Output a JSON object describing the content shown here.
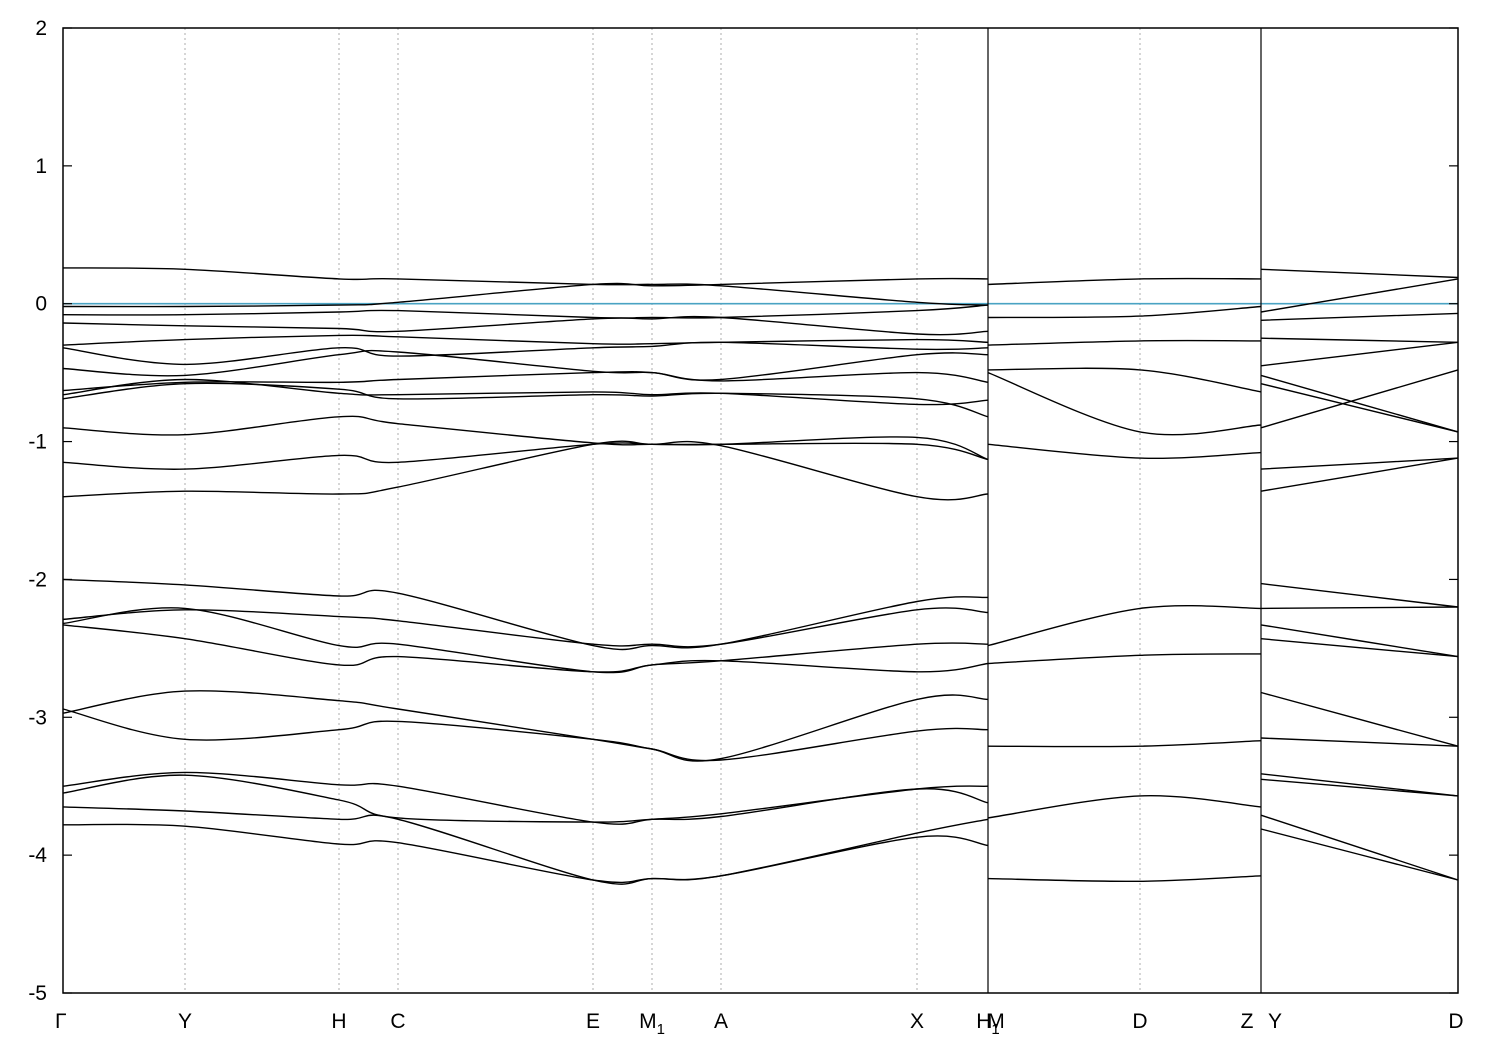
{
  "chart_data": {
    "type": "line",
    "title": "",
    "xlabel": "",
    "ylabel": "",
    "ylim": [
      -5,
      2
    ],
    "yticks": [
      "2",
      "1",
      "0",
      "-1",
      "-2",
      "-3",
      "-4",
      "-5"
    ],
    "xlim": [
      0,
      1395
    ],
    "high_symmetry_points": [
      {
        "label": "Γ",
        "x": 0
      },
      {
        "label": "Y",
        "x": 122
      },
      {
        "label": "H",
        "x": 276
      },
      {
        "label": "C",
        "x": 335
      },
      {
        "label": "E",
        "x": 530
      },
      {
        "label": "M",
        "sub": "1",
        "x": 589
      },
      {
        "label": "A",
        "x": 658
      },
      {
        "label": "X",
        "x": 854
      },
      {
        "label": "H",
        "sub": "1",
        "x": 925
      },
      {
        "label": "M",
        "x": 933
      },
      {
        "label": "D",
        "x": 1077
      },
      {
        "label": "Z",
        "x": 1184
      },
      {
        "label": "Y",
        "x": 1212
      },
      {
        "label": "D",
        "x": 1395
      }
    ],
    "vertical_gridlines_at": [
      122,
      276,
      335,
      530,
      589,
      658,
      854,
      925,
      1077,
      1198
    ],
    "segment_breaks": [
      925,
      1198
    ],
    "fermi_level": 0,
    "colors": {
      "bands": "#000000",
      "fermi": "#4aa3c3",
      "grid": "#9a9a9a"
    },
    "grid": true,
    "segments": [
      {
        "x": [
          0,
          122,
          276,
          335,
          530,
          589,
          658,
          854,
          925
        ],
        "bands": [
          [
            0.26,
            0.25,
            0.18,
            0.18,
            0.14,
            0.14,
            0.13,
            0.01,
            -0.01
          ],
          [
            -0.02,
            -0.02,
            -0.01,
            0.01,
            0.14,
            0.13,
            0.14,
            0.18,
            0.18
          ],
          [
            -0.08,
            -0.08,
            -0.06,
            -0.05,
            -0.1,
            -0.1,
            -0.1,
            -0.05,
            -0.01
          ],
          [
            -0.14,
            -0.16,
            -0.18,
            -0.2,
            -0.11,
            -0.11,
            -0.1,
            -0.22,
            -0.2
          ],
          [
            -0.3,
            -0.26,
            -0.23,
            -0.24,
            -0.29,
            -0.29,
            -0.28,
            -0.26,
            -0.28
          ],
          [
            -0.32,
            -0.44,
            -0.32,
            -0.38,
            -0.32,
            -0.31,
            -0.28,
            -0.33,
            -0.32
          ],
          [
            -0.47,
            -0.52,
            -0.37,
            -0.35,
            -0.49,
            -0.5,
            -0.55,
            -0.37,
            -0.37
          ],
          [
            -0.63,
            -0.57,
            -0.57,
            -0.55,
            -0.5,
            -0.5,
            -0.56,
            -0.5,
            -0.57
          ],
          [
            -0.66,
            -0.55,
            -0.65,
            -0.66,
            -0.64,
            -0.66,
            -0.65,
            -0.73,
            -0.7
          ],
          [
            -0.69,
            -0.58,
            -0.62,
            -0.69,
            -0.66,
            -0.67,
            -0.65,
            -0.69,
            -0.82
          ],
          [
            -0.9,
            -0.95,
            -0.82,
            -0.87,
            -1.01,
            -1.02,
            -1.02,
            -1.02,
            -1.13
          ],
          [
            -1.15,
            -1.2,
            -1.1,
            -1.15,
            -1.02,
            -1.02,
            -1.03,
            -1.4,
            -1.38
          ],
          [
            -1.4,
            -1.36,
            -1.38,
            -1.33,
            -1.02,
            -1.02,
            -1.02,
            -0.97,
            -1.13
          ],
          [
            -2.0,
            -2.04,
            -2.12,
            -2.1,
            -2.48,
            -2.48,
            -2.47,
            -2.16,
            -2.13
          ],
          [
            -2.29,
            -2.22,
            -2.27,
            -2.3,
            -2.47,
            -2.47,
            -2.47,
            -2.22,
            -2.24
          ],
          [
            -2.32,
            -2.21,
            -2.48,
            -2.47,
            -2.67,
            -2.62,
            -2.59,
            -2.47,
            -2.47
          ],
          [
            -2.33,
            -2.43,
            -2.62,
            -2.56,
            -2.67,
            -2.62,
            -2.59,
            -2.67,
            -2.61
          ],
          [
            -2.97,
            -2.81,
            -2.88,
            -2.94,
            -3.16,
            -3.23,
            -3.3,
            -2.87,
            -2.87
          ],
          [
            -2.94,
            -3.16,
            -3.09,
            -3.03,
            -3.16,
            -3.23,
            -3.31,
            -3.1,
            -3.09
          ],
          [
            -3.5,
            -3.4,
            -3.49,
            -3.5,
            -3.76,
            -3.74,
            -3.7,
            -3.52,
            -3.5
          ],
          [
            -3.55,
            -3.42,
            -3.6,
            -3.73,
            -3.76,
            -3.74,
            -3.72,
            -3.52,
            -3.62
          ],
          [
            -3.65,
            -3.68,
            -3.74,
            -3.74,
            -4.18,
            -4.17,
            -4.15,
            -3.84,
            -3.74
          ],
          [
            -3.78,
            -3.79,
            -3.92,
            -3.91,
            -4.18,
            -4.17,
            -4.15,
            -3.87,
            -3.93
          ]
        ]
      },
      {
        "x": [
          925,
          1077,
          1198
        ],
        "bands": [
          [
            0.14,
            0.18,
            0.18
          ],
          [
            -0.1,
            -0.09,
            -0.02
          ],
          [
            -0.3,
            -0.27,
            -0.27
          ],
          [
            -0.5,
            -0.93,
            -0.88
          ],
          [
            -0.48,
            -0.48,
            -0.64
          ],
          [
            -1.02,
            -1.12,
            -1.08
          ],
          [
            -2.48,
            -2.21,
            -2.21
          ],
          [
            -2.61,
            -2.55,
            -2.54
          ],
          [
            -3.21,
            -3.21,
            -3.17
          ],
          [
            -3.73,
            -3.57,
            -3.65
          ],
          [
            -4.17,
            -4.19,
            -4.15
          ]
        ]
      },
      {
        "x": [
          1198,
          1395
        ],
        "bands": [
          [
            0.25,
            0.19
          ],
          [
            -0.06,
            0.18
          ],
          [
            -0.12,
            -0.07
          ],
          [
            -0.45,
            -0.28
          ],
          [
            -0.25,
            -0.28
          ],
          [
            -0.52,
            -0.93
          ],
          [
            -0.58,
            -0.93
          ],
          [
            -0.9,
            -0.48
          ],
          [
            -1.2,
            -1.12
          ],
          [
            -1.36,
            -1.12
          ],
          [
            -2.03,
            -2.2
          ],
          [
            -2.21,
            -2.2
          ],
          [
            -2.33,
            -2.56
          ],
          [
            -2.43,
            -2.56
          ],
          [
            -2.82,
            -3.21
          ],
          [
            -3.15,
            -3.21
          ],
          [
            -3.41,
            -3.57
          ],
          [
            -3.45,
            -3.57
          ],
          [
            -3.71,
            -4.18
          ],
          [
            -3.81,
            -4.18
          ]
        ]
      }
    ]
  }
}
